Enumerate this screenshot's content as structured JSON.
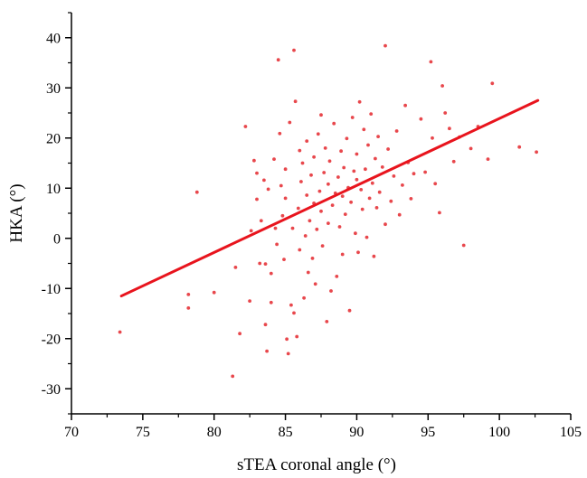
{
  "chart_data": {
    "type": "scatter",
    "title": "",
    "xlabel": "sTEA coronal angle (°)",
    "ylabel": "HKA (°)",
    "xlim": [
      70,
      105
    ],
    "ylim": [
      -35,
      45
    ],
    "x_ticks": [
      70,
      75,
      80,
      85,
      90,
      95,
      100,
      105
    ],
    "y_ticks": [
      -30,
      -20,
      -10,
      0,
      10,
      20,
      30,
      40
    ],
    "grid": false,
    "legend": "none",
    "colors": {
      "points": "#e8474c",
      "fit_line": "#e8141d",
      "axis": "#000000"
    },
    "fit_line": {
      "x": [
        73.5,
        102.7
      ],
      "y": [
        -11.5,
        27.5
      ]
    },
    "series": [
      {
        "values": [
          [
            73.4,
            -18.7
          ],
          [
            78.2,
            -11.2
          ],
          [
            78.2,
            -13.9
          ],
          [
            78.8,
            9.2
          ],
          [
            80.0,
            -10.8
          ],
          [
            81.3,
            -27.5
          ],
          [
            81.5,
            -5.8
          ],
          [
            81.8,
            -19.0
          ],
          [
            82.2,
            22.3
          ],
          [
            82.5,
            -12.5
          ],
          [
            82.6,
            1.5
          ],
          [
            82.8,
            15.5
          ],
          [
            83.0,
            13.0
          ],
          [
            83.0,
            7.8
          ],
          [
            83.2,
            -5.0
          ],
          [
            83.3,
            3.5
          ],
          [
            83.5,
            11.6
          ],
          [
            83.6,
            -5.1
          ],
          [
            83.6,
            -17.2
          ],
          [
            83.7,
            -22.5
          ],
          [
            83.8,
            9.8
          ],
          [
            84.0,
            -7.0
          ],
          [
            84.0,
            -12.8
          ],
          [
            84.2,
            15.8
          ],
          [
            84.3,
            2.0
          ],
          [
            84.4,
            -1.2
          ],
          [
            84.5,
            35.6
          ],
          [
            84.6,
            20.9
          ],
          [
            84.7,
            10.5
          ],
          [
            84.8,
            4.5
          ],
          [
            84.9,
            -4.2
          ],
          [
            85.0,
            13.8
          ],
          [
            85.0,
            8.0
          ],
          [
            85.1,
            -20.1
          ],
          [
            85.2,
            -23.0
          ],
          [
            85.3,
            23.1
          ],
          [
            85.4,
            -13.3
          ],
          [
            85.5,
            2.0
          ],
          [
            85.6,
            37.5
          ],
          [
            85.6,
            -14.9
          ],
          [
            85.7,
            27.3
          ],
          [
            85.8,
            -19.6
          ],
          [
            85.9,
            6.0
          ],
          [
            86.0,
            17.5
          ],
          [
            86.0,
            -2.3
          ],
          [
            86.1,
            11.3
          ],
          [
            86.2,
            15.0
          ],
          [
            86.3,
            -11.9
          ],
          [
            86.4,
            0.5
          ],
          [
            86.5,
            19.4
          ],
          [
            86.5,
            8.6
          ],
          [
            86.6,
            -6.8
          ],
          [
            86.7,
            3.5
          ],
          [
            86.8,
            12.6
          ],
          [
            86.9,
            -4.0
          ],
          [
            87.0,
            7.0
          ],
          [
            87.0,
            16.2
          ],
          [
            87.1,
            -9.1
          ],
          [
            87.2,
            1.8
          ],
          [
            87.3,
            20.8
          ],
          [
            87.4,
            9.4
          ],
          [
            87.5,
            24.6
          ],
          [
            87.5,
            5.4
          ],
          [
            87.6,
            -1.5
          ],
          [
            87.7,
            13.1
          ],
          [
            87.8,
            18.0
          ],
          [
            87.9,
            -16.6
          ],
          [
            88.0,
            10.8
          ],
          [
            88.0,
            3.0
          ],
          [
            88.1,
            15.4
          ],
          [
            88.2,
            -10.5
          ],
          [
            88.3,
            6.6
          ],
          [
            88.4,
            22.9
          ],
          [
            88.5,
            9.0
          ],
          [
            88.6,
            -7.6
          ],
          [
            88.7,
            12.2
          ],
          [
            88.8,
            2.3
          ],
          [
            88.9,
            17.4
          ],
          [
            89.0,
            8.4
          ],
          [
            89.0,
            -3.2
          ],
          [
            89.1,
            14.1
          ],
          [
            89.2,
            4.8
          ],
          [
            89.3,
            19.9
          ],
          [
            89.4,
            10.1
          ],
          [
            89.5,
            -14.4
          ],
          [
            89.6,
            7.2
          ],
          [
            89.7,
            24.1
          ],
          [
            89.8,
            13.4
          ],
          [
            89.9,
            1.0
          ],
          [
            90.0,
            11.7
          ],
          [
            90.0,
            16.8
          ],
          [
            90.1,
            -2.8
          ],
          [
            90.2,
            27.2
          ],
          [
            90.3,
            9.7
          ],
          [
            90.4,
            5.8
          ],
          [
            90.5,
            21.7
          ],
          [
            90.6,
            13.8
          ],
          [
            90.7,
            0.2
          ],
          [
            90.8,
            18.6
          ],
          [
            90.9,
            8.0
          ],
          [
            91.0,
            24.8
          ],
          [
            91.1,
            11.0
          ],
          [
            91.2,
            -3.6
          ],
          [
            91.3,
            15.9
          ],
          [
            91.4,
            6.1
          ],
          [
            91.5,
            20.3
          ],
          [
            91.6,
            9.2
          ],
          [
            91.8,
            14.2
          ],
          [
            92.0,
            38.4
          ],
          [
            92.0,
            2.8
          ],
          [
            92.2,
            17.8
          ],
          [
            92.4,
            7.4
          ],
          [
            92.6,
            12.4
          ],
          [
            92.8,
            21.4
          ],
          [
            93.0,
            4.7
          ],
          [
            93.2,
            10.6
          ],
          [
            93.4,
            26.5
          ],
          [
            93.6,
            15.1
          ],
          [
            93.8,
            7.9
          ],
          [
            94.0,
            12.9
          ],
          [
            94.5,
            23.8
          ],
          [
            94.8,
            13.2
          ],
          [
            95.2,
            35.2
          ],
          [
            95.3,
            20.0
          ],
          [
            95.5,
            10.9
          ],
          [
            95.8,
            5.1
          ],
          [
            96.0,
            30.4
          ],
          [
            96.2,
            25.0
          ],
          [
            96.5,
            21.9
          ],
          [
            96.8,
            15.3
          ],
          [
            97.2,
            20.2
          ],
          [
            97.5,
            -1.4
          ],
          [
            98.0,
            17.9
          ],
          [
            98.5,
            22.3
          ],
          [
            99.2,
            15.8
          ],
          [
            99.5,
            30.9
          ],
          [
            101.4,
            18.2
          ],
          [
            102.6,
            17.2
          ]
        ]
      }
    ]
  }
}
